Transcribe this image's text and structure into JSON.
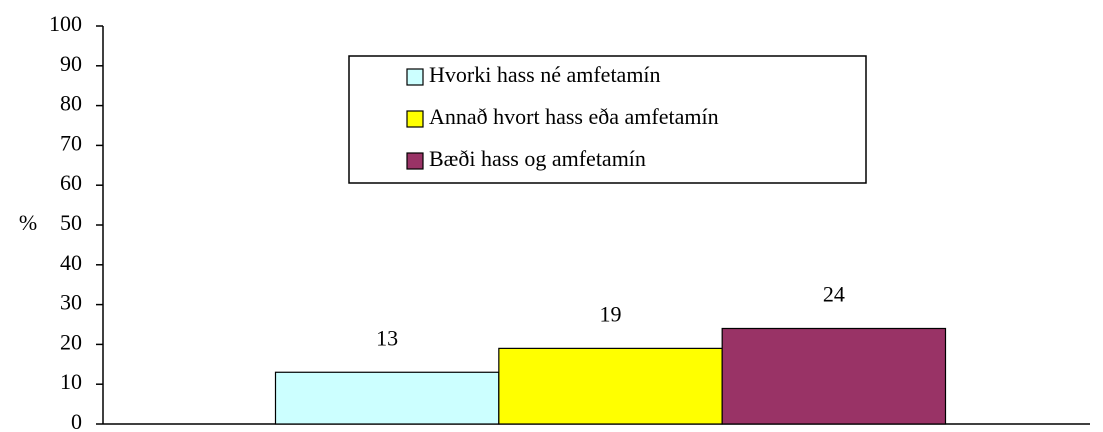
{
  "chart_data": {
    "type": "bar",
    "ylabel": "%",
    "categories": [
      null
    ],
    "series": [
      {
        "name": "Hvorki hass né amfetamín",
        "color": "#ccffff",
        "values": [
          13
        ]
      },
      {
        "name": "Annað hvort hass eða amfetamín",
        "color": "#ffff00",
        "values": [
          19
        ]
      },
      {
        "name": "Bæði hass og amfetamín",
        "color": "#993366",
        "values": [
          24
        ]
      }
    ],
    "ylim": [
      0,
      100
    ],
    "yticks": [
      0,
      10,
      20,
      30,
      40,
      50,
      60,
      70,
      80,
      90,
      100
    ],
    "grid": false
  }
}
